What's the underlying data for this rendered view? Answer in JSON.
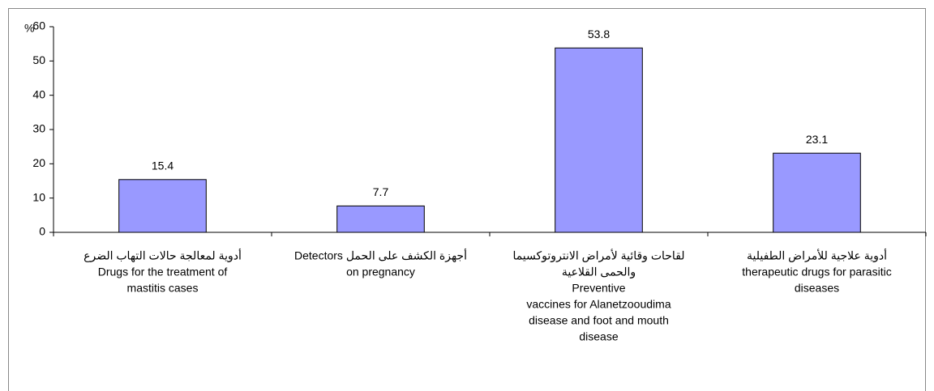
{
  "chart_data": {
    "type": "bar",
    "y_label": "%",
    "categories": [
      [
        "أدوية لمعالجة حالات التهاب الضرع",
        "Drugs for the treatment of",
        "mastitis cases"
      ],
      [
        "أجهزة الكشف على الحمل Detectors",
        "on pregnancy"
      ],
      [
        "لقاحات وقائية لأمراض الانتروتوكسيما",
        "والحمى القلاعية",
        "Preventive",
        "vaccines for Alanetzooudima",
        "disease and foot and mouth",
        "disease"
      ],
      [
        "أدوية علاجية للأمراض الطفيلية",
        "therapeutic drugs for parasitic",
        "diseases"
      ]
    ],
    "values": [
      15.4,
      7.7,
      53.8,
      23.1
    ],
    "color": "#9999ff",
    "ylim": [
      0,
      60
    ],
    "yticks": [
      0,
      10,
      20,
      30,
      40,
      50,
      60
    ]
  }
}
